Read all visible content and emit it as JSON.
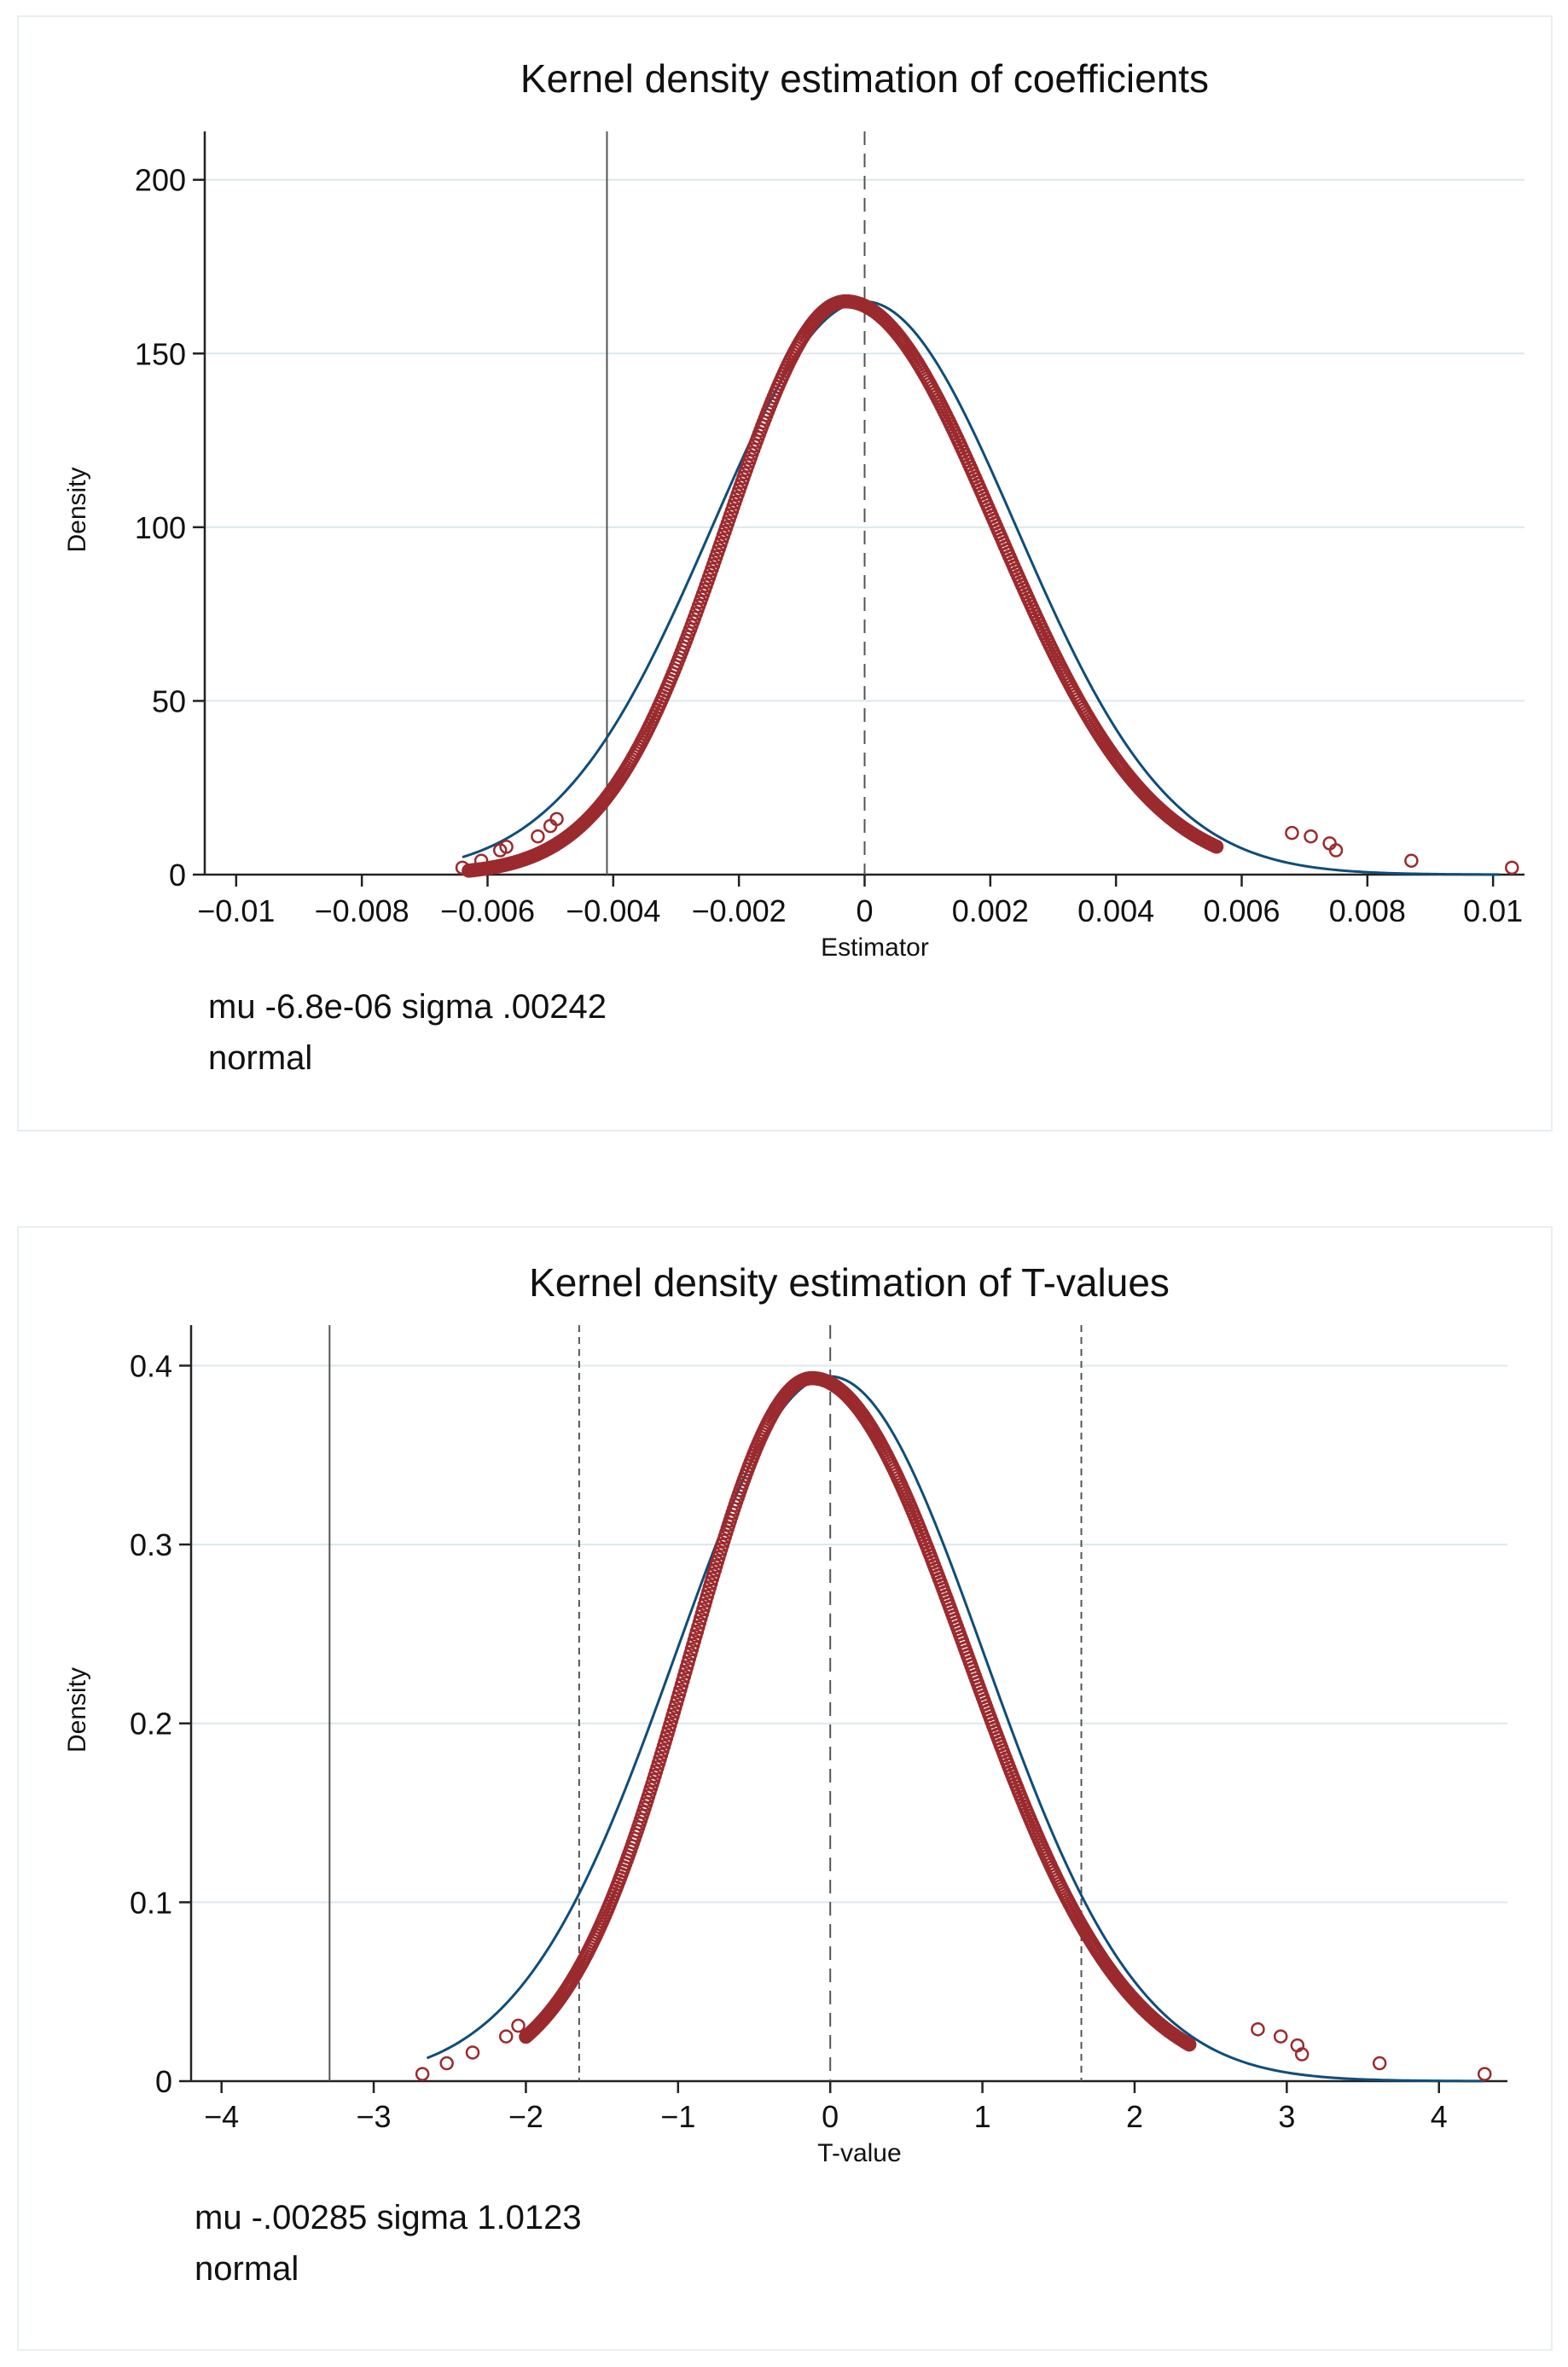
{
  "charts": [
    {
      "note_line1": "mu -6.8e-06 sigma .00242",
      "note_line2": "normal"
    },
    {
      "note_line1": "mu -.00285 sigma 1.0123",
      "note_line2": "normal"
    }
  ],
  "colors": {
    "points": "#9b2a2e",
    "normal_curve": "#0f4d7a",
    "grid": "#dde8ec"
  },
  "chart_data": [
    {
      "type": "scatter",
      "title": "Kernel density estimation of coefficients",
      "xlabel": "Estimator",
      "ylabel": "Density",
      "xlim": [
        -0.0105,
        0.0105
      ],
      "ylim": [
        0,
        210
      ],
      "xticks": [
        -0.01,
        -0.008,
        -0.006,
        -0.004,
        -0.002,
        0,
        0.002,
        0.004,
        0.006,
        0.008,
        0.01
      ],
      "xtick_labels": [
        "−0.01",
        "−0.008",
        "−0.006",
        "−0.004",
        "−0.002",
        "0",
        "0.002",
        "0.004",
        "0.006",
        "0.008",
        "0.01"
      ],
      "yticks": [
        0,
        50,
        100,
        150,
        200
      ],
      "ytick_labels": [
        "0",
        "50",
        "100",
        "150",
        "200"
      ],
      "vlines": [
        {
          "x": -0.0041,
          "style": "solid"
        },
        {
          "x": 0,
          "style": "dashed"
        }
      ],
      "normal": {
        "mu": -6.8e-06,
        "sigma": 0.00242,
        "peak": 165,
        "from": -0.0064,
        "to": 0.0101
      },
      "kde_range": [
        -0.0063,
        0.0056
      ],
      "kde_peak": 165,
      "kde_mode": -0.0003,
      "kde_sigma_left": 0.0019,
      "kde_sigma_right": 0.0024,
      "tail_points": [
        {
          "x": -0.0064,
          "y": 2
        },
        {
          "x": -0.0061,
          "y": 4
        },
        {
          "x": -0.0058,
          "y": 7
        },
        {
          "x": -0.0057,
          "y": 8
        },
        {
          "x": -0.0052,
          "y": 11
        },
        {
          "x": -0.005,
          "y": 14
        },
        {
          "x": -0.0049,
          "y": 16
        },
        {
          "x": 0.0068,
          "y": 12
        },
        {
          "x": 0.0071,
          "y": 11
        },
        {
          "x": 0.0074,
          "y": 9
        },
        {
          "x": 0.0075,
          "y": 7
        },
        {
          "x": 0.0087,
          "y": 4
        },
        {
          "x": 0.0103,
          "y": 2
        }
      ]
    },
    {
      "type": "scatter",
      "title": "Kernel density estimation of T-values",
      "xlabel": "T-value",
      "ylabel": "Density",
      "xlim": [
        -4.2,
        4.45
      ],
      "ylim": [
        0,
        0.415
      ],
      "xticks": [
        -4,
        -3,
        -2,
        -1,
        0,
        1,
        2,
        3,
        4
      ],
      "xtick_labels": [
        "−4",
        "−3",
        "−2",
        "−1",
        "0",
        "1",
        "2",
        "3",
        "4"
      ],
      "yticks": [
        0,
        0.1,
        0.2,
        0.3,
        0.4
      ],
      "ytick_labels": [
        "0",
        "0.1",
        "0.2",
        "0.3",
        "0.4"
      ],
      "vlines": [
        {
          "x": -3.29,
          "style": "solid"
        },
        {
          "x": -1.65,
          "style": "dotted"
        },
        {
          "x": 0,
          "style": "dashed"
        },
        {
          "x": 1.65,
          "style": "dotted"
        }
      ],
      "normal": {
        "mu": -0.00285,
        "sigma": 1.0123,
        "peak": 0.394,
        "from": -2.65,
        "to": 4.3
      },
      "kde_range": [
        -2.0,
        2.36
      ],
      "kde_peak": 0.393,
      "kde_mode": -0.12,
      "kde_sigma_left": 0.8,
      "kde_sigma_right": 1.02,
      "tail_points": [
        {
          "x": -2.68,
          "y": 0.004
        },
        {
          "x": -2.52,
          "y": 0.01
        },
        {
          "x": -2.35,
          "y": 0.016
        },
        {
          "x": -2.13,
          "y": 0.025
        },
        {
          "x": -2.05,
          "y": 0.031
        },
        {
          "x": 2.81,
          "y": 0.029
        },
        {
          "x": 2.96,
          "y": 0.025
        },
        {
          "x": 3.07,
          "y": 0.02
        },
        {
          "x": 3.1,
          "y": 0.015
        },
        {
          "x": 3.61,
          "y": 0.01
        },
        {
          "x": 4.3,
          "y": 0.004
        }
      ]
    }
  ]
}
